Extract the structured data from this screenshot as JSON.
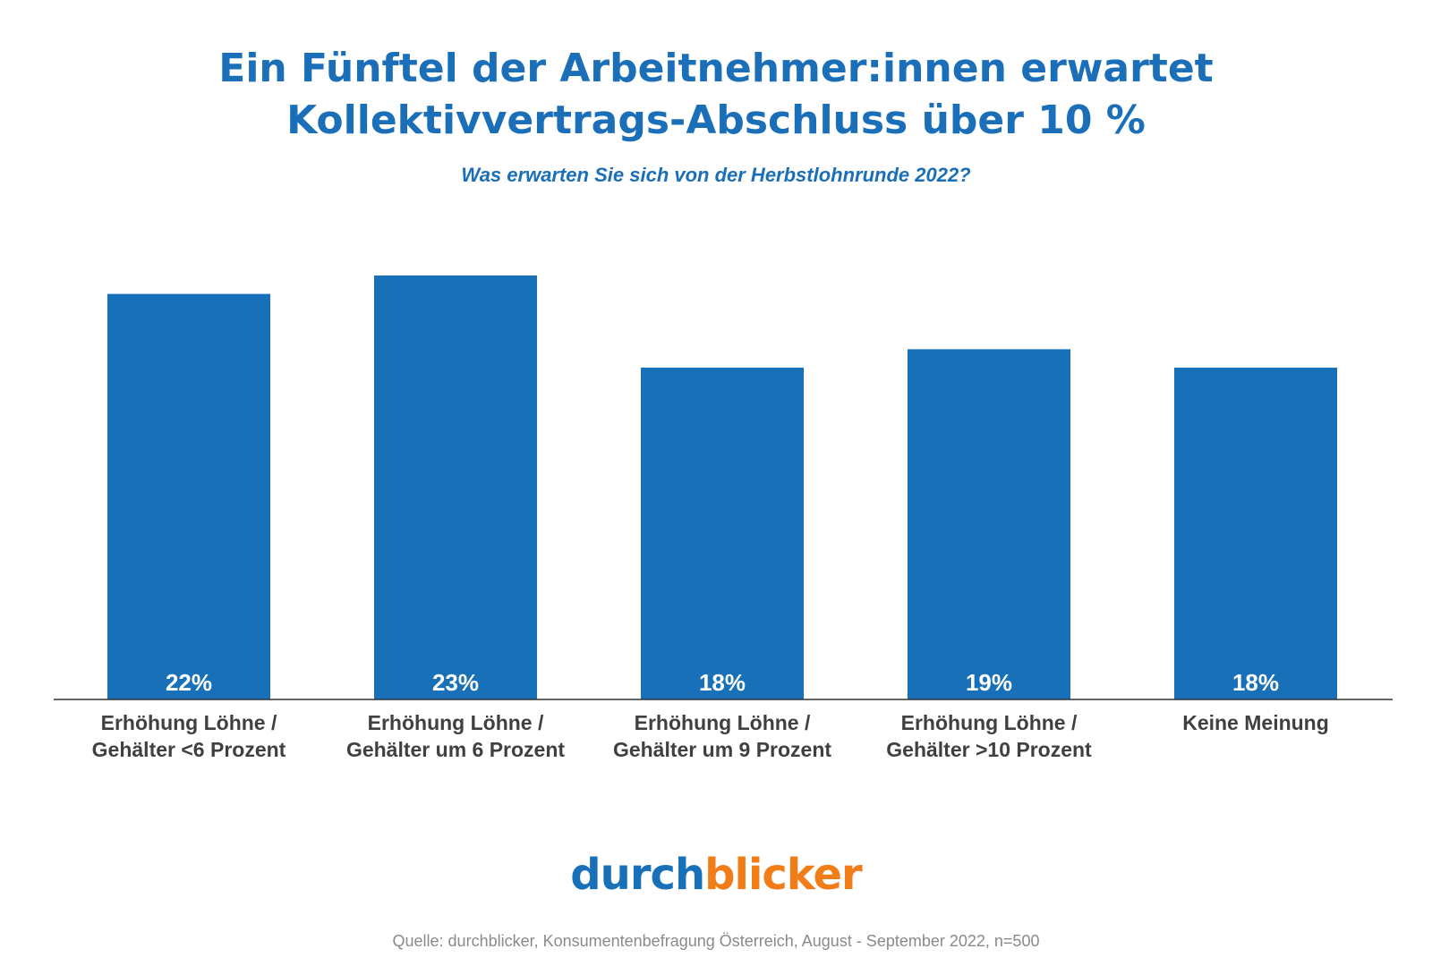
{
  "header": {
    "title_line1": "Ein Fünftel der Arbeitnehmer:innen erwartet",
    "title_line2": "Kollektivvertrags-Abschluss über 10 %",
    "subtitle": "Was erwarten Sie sich von der Herbstlohnrunde 2022?"
  },
  "footer": {
    "brand_part1": "durch",
    "brand_part2": "blicker",
    "source": "Quelle: durchblicker, Konsumentenbefragung Österreich, August - September 2022, n=500"
  },
  "colors": {
    "bar": "#1770b8",
    "title": "#1a6fb8",
    "brand_blue": "#1770b8",
    "brand_orange": "#f07d18"
  },
  "chart_data": {
    "type": "bar",
    "categories": [
      [
        "Erhöhung Löhne /",
        "Gehälter <6 Prozent"
      ],
      [
        "Erhöhung Löhne /",
        "Gehälter um 6 Prozent"
      ],
      [
        "Erhöhung Löhne /",
        "Gehälter um 9 Prozent"
      ],
      [
        "Erhöhung Löhne /",
        "Gehälter >10 Prozent"
      ],
      [
        "Keine Meinung"
      ]
    ],
    "values": [
      22,
      23,
      18,
      19,
      18
    ],
    "value_labels": [
      "22%",
      "23%",
      "18%",
      "19%",
      "18%"
    ],
    "unit": "%",
    "ylim": [
      0,
      23
    ],
    "grid": false,
    "legend": "none"
  }
}
